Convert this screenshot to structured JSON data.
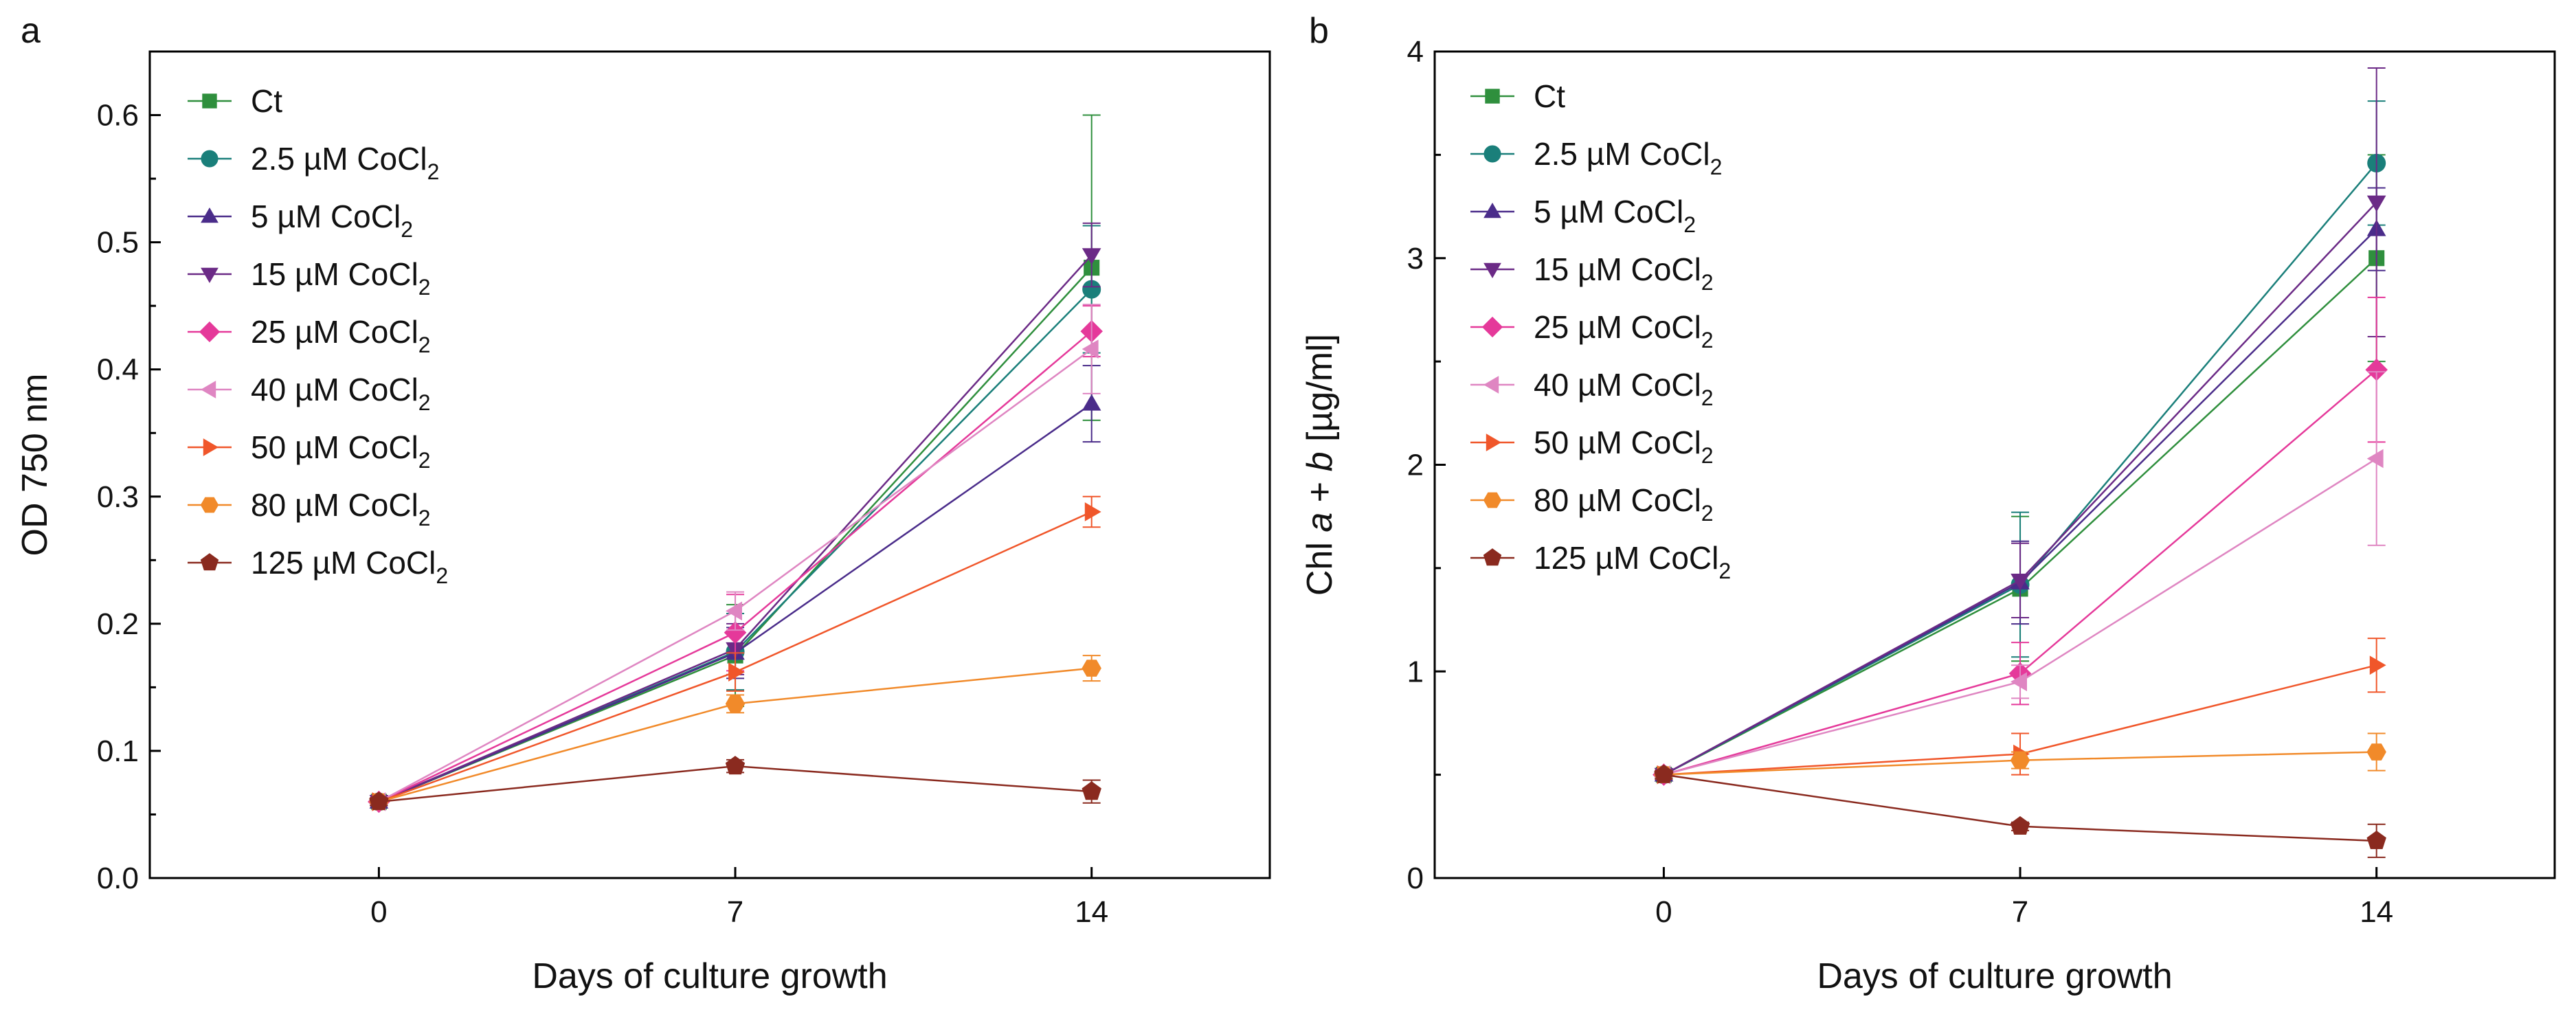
{
  "figure": {
    "series_order": [
      "Ct",
      "2.5 µM CoCl2",
      "5 µM CoCl2",
      "15 µM CoCl2",
      "25 µM CoCl2",
      "40 µM CoCl2",
      "50 µM CoCl2",
      "80 µM CoCl2",
      "125 µM CoCl2"
    ],
    "series_styles": [
      {
        "color": "#2f8f3d",
        "marker": "square"
      },
      {
        "color": "#1a7f7a",
        "marker": "circle"
      },
      {
        "color": "#4a2c8a",
        "marker": "triangle-up"
      },
      {
        "color": "#6b2a86",
        "marker": "triangle-down"
      },
      {
        "color": "#e5399a",
        "marker": "diamond"
      },
      {
        "color": "#df86c2",
        "marker": "triangle-left"
      },
      {
        "color": "#f0562a",
        "marker": "triangle-right"
      },
      {
        "color": "#f18a2a",
        "marker": "hexagon"
      },
      {
        "color": "#8a2a1f",
        "marker": "pentagon"
      }
    ]
  },
  "chart_data": [
    {
      "panel_label": "a",
      "type": "line",
      "xlabel": "Days of culture growth",
      "ylabel": "OD 750 nm",
      "x": [
        0,
        7,
        14
      ],
      "x_ticks": [
        "0",
        "7",
        "14"
      ],
      "xlim": [
        -4.5,
        17.5
      ],
      "ylim": [
        0,
        0.65
      ],
      "y_ticks": [
        "0.0",
        "0.1",
        "0.2",
        "0.3",
        "0.4",
        "0.5",
        "0.6"
      ],
      "y_tick_values": [
        0,
        0.1,
        0.2,
        0.3,
        0.4,
        0.5,
        0.6
      ],
      "legend_position": "top-left",
      "series": [
        {
          "name": "Ct",
          "legend_prefix": "Ct",
          "legend_sub": "",
          "values": [
            0.06,
            0.175,
            0.48
          ],
          "err": [
            0.003,
            0.04,
            0.12
          ]
        },
        {
          "name": "2.5 µM CoCl2",
          "legend_prefix": "2.5 µM CoCl",
          "legend_sub": "2",
          "values": [
            0.06,
            0.178,
            0.463
          ],
          "err": [
            0.003,
            0.03,
            0.05
          ]
        },
        {
          "name": "5 µM CoCl2",
          "legend_prefix": "5 µM CoCl",
          "legend_sub": "2",
          "values": [
            0.06,
            0.177,
            0.373
          ],
          "err": [
            0.003,
            0.02,
            0.03
          ]
        },
        {
          "name": "15 µM CoCl2",
          "legend_prefix": "15 µM CoCl",
          "legend_sub": "2",
          "values": [
            0.06,
            0.18,
            0.49
          ],
          "err": [
            0.003,
            0.02,
            0.025
          ]
        },
        {
          "name": "25 µM CoCl2",
          "legend_prefix": "25 µM CoCl",
          "legend_sub": "2",
          "values": [
            0.06,
            0.193,
            0.43
          ],
          "err": [
            0.003,
            0.03,
            0.02
          ]
        },
        {
          "name": "40 µM CoCl2",
          "legend_prefix": "40 µM CoCl",
          "legend_sub": "2",
          "values": [
            0.06,
            0.21,
            0.416
          ],
          "err": [
            0.003,
            0.015,
            0.035
          ]
        },
        {
          "name": "50 µM CoCl2",
          "legend_prefix": "50 µM CoCl",
          "legend_sub": "2",
          "values": [
            0.06,
            0.162,
            0.288
          ],
          "err": [
            0.003,
            0.015,
            0.012
          ]
        },
        {
          "name": "80 µM CoCl2",
          "legend_prefix": "80 µM CoCl",
          "legend_sub": "2",
          "values": [
            0.06,
            0.137,
            0.165
          ],
          "err": [
            0.003,
            0.007,
            0.01
          ]
        },
        {
          "name": "125 µM CoCl2",
          "legend_prefix": "125 µM CoCl",
          "legend_sub": "2",
          "values": [
            0.06,
            0.088,
            0.068
          ],
          "err": [
            0.003,
            0.005,
            0.009
          ]
        }
      ]
    },
    {
      "panel_label": "b",
      "type": "line",
      "xlabel": "Days of culture growth",
      "ylabel_parts": [
        "Chl ",
        "a",
        " + ",
        "b",
        " [µg/ml]"
      ],
      "x": [
        0,
        7,
        14
      ],
      "x_ticks": [
        "0",
        "7",
        "14"
      ],
      "xlim": [
        -4.5,
        17.5
      ],
      "ylim": [
        0,
        4
      ],
      "y_ticks": [
        "0",
        "1",
        "2",
        "3",
        "4"
      ],
      "y_tick_values": [
        0,
        1,
        2,
        3,
        4
      ],
      "legend_position": "top-left",
      "series": [
        {
          "name": "Ct",
          "legend_prefix": "Ct",
          "legend_sub": "",
          "values": [
            0.5,
            1.4,
            3.0
          ],
          "err": [
            0.02,
            0.35,
            0.5
          ]
        },
        {
          "name": "2.5 µM CoCl2",
          "legend_prefix": "2.5 µM CoCl",
          "legend_sub": "2",
          "values": [
            0.5,
            1.42,
            3.46
          ],
          "err": [
            0.02,
            0.35,
            0.3
          ]
        },
        {
          "name": "5 µM CoCl2",
          "legend_prefix": "5 µM CoCl",
          "legend_sub": "2",
          "values": [
            0.5,
            1.43,
            3.14
          ],
          "err": [
            0.02,
            0.2,
            0.2
          ]
        },
        {
          "name": "15 µM CoCl2",
          "legend_prefix": "15 µM CoCl",
          "legend_sub": "2",
          "values": [
            0.5,
            1.44,
            3.27
          ],
          "err": [
            0.02,
            0.18,
            0.65
          ]
        },
        {
          "name": "25 µM CoCl2",
          "legend_prefix": "25 µM CoCl",
          "legend_sub": "2",
          "values": [
            0.5,
            0.99,
            2.46
          ],
          "err": [
            0.02,
            0.15,
            0.35
          ]
        },
        {
          "name": "40 µM CoCl2",
          "legend_prefix": "40 µM CoCl",
          "legend_sub": "2",
          "values": [
            0.5,
            0.95,
            2.03
          ],
          "err": [
            0.02,
            0.08,
            0.42
          ]
        },
        {
          "name": "50 µM CoCl2",
          "legend_prefix": "50 µM CoCl",
          "legend_sub": "2",
          "values": [
            0.5,
            0.6,
            1.03
          ],
          "err": [
            0.02,
            0.1,
            0.13
          ]
        },
        {
          "name": "80 µM CoCl2",
          "legend_prefix": "80 µM CoCl",
          "legend_sub": "2",
          "values": [
            0.5,
            0.57,
            0.61
          ],
          "err": [
            0.02,
            0.04,
            0.09
          ]
        },
        {
          "name": "125 µM CoCl2",
          "legend_prefix": "125 µM CoCl",
          "legend_sub": "2",
          "values": [
            0.5,
            0.25,
            0.18
          ],
          "err": [
            0.02,
            0.02,
            0.08
          ]
        }
      ]
    }
  ]
}
